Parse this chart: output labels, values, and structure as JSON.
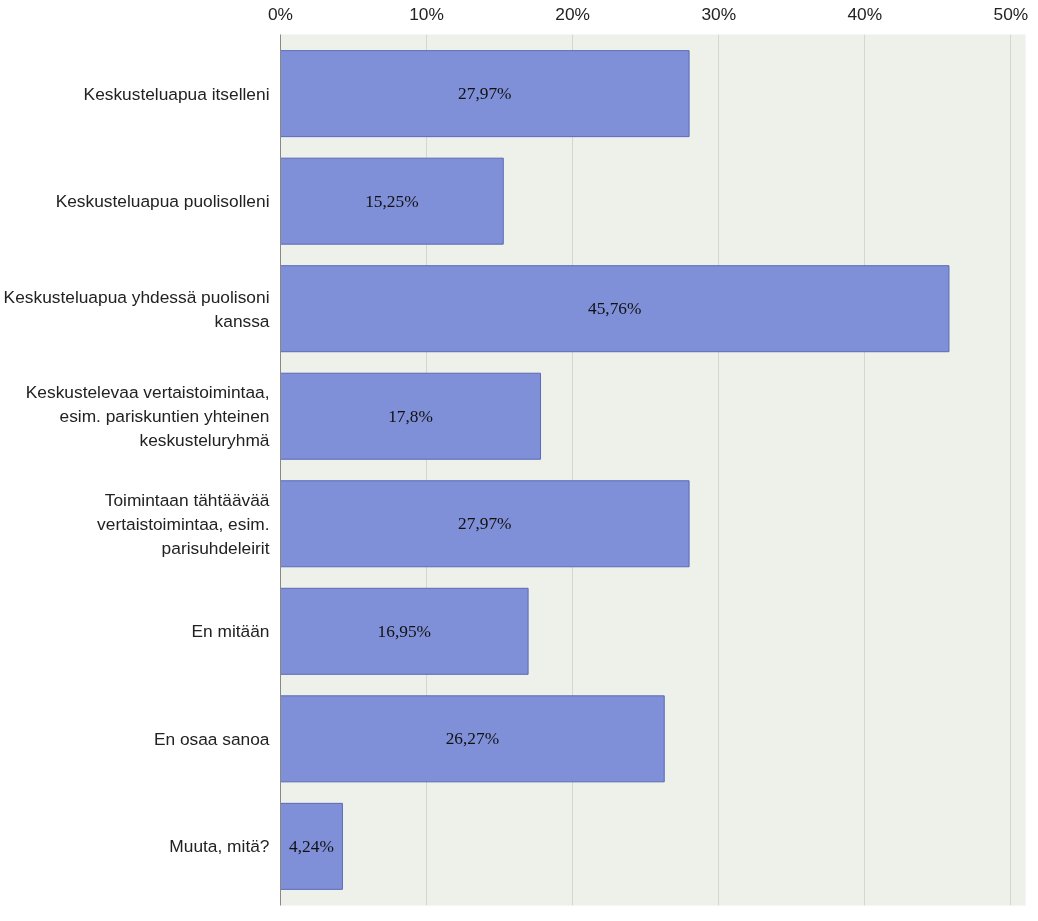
{
  "chart_data": {
    "type": "bar",
    "orientation": "horizontal",
    "categories": [
      "Keskusteluapua itselleni",
      "Keskusteluapua puolisolleni",
      "Keskusteluapua yhdessä puolisoni kanssa",
      "Keskustelevaa vertaistoimintaa, esim. pariskuntien yhteinen keskusteluryhmä",
      "Toimintaan tähtäävää vertaistoimintaa, esim. parisuhdeleirit",
      "En mitään",
      "En osaa sanoa",
      "Muuta, mitä?"
    ],
    "values": [
      27.97,
      15.25,
      45.76,
      17.8,
      27.97,
      16.95,
      26.27,
      4.24
    ],
    "value_labels": [
      "27,97%",
      "15,25%",
      "45,76%",
      "17,8%",
      "27,97%",
      "16,95%",
      "26,27%",
      "4,24%"
    ],
    "color": "#7f8fd8",
    "xlim": [
      0,
      51
    ],
    "xticks": [
      {
        "value": 0,
        "label": "0%"
      },
      {
        "value": 10,
        "label": "10%"
      },
      {
        "value": 20,
        "label": "20%"
      },
      {
        "value": 30,
        "label": "30%"
      },
      {
        "value": 40,
        "label": "40%"
      },
      {
        "value": 50,
        "label": "50%"
      }
    ],
    "grid": "x"
  }
}
